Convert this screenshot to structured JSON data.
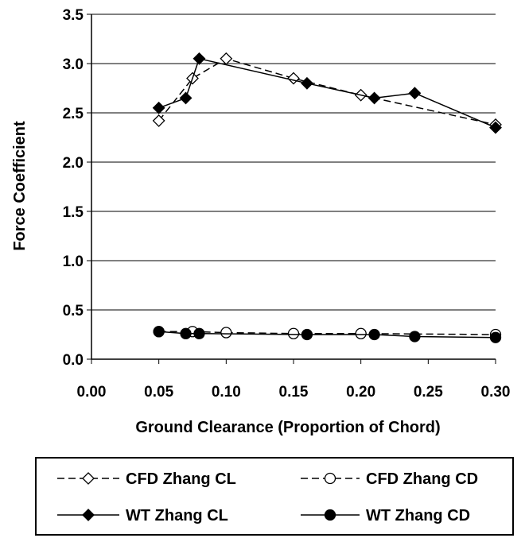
{
  "chart_data": {
    "type": "line",
    "title": "",
    "xlabel": "Ground Clearance (Proportion of Chord)",
    "ylabel": "Force Coefficient",
    "xlim": [
      0.0,
      0.3
    ],
    "ylim": [
      0.0,
      3.5
    ],
    "x_ticks": [
      "0.00",
      "0.05",
      "0.10",
      "0.15",
      "0.20",
      "0.25",
      "0.30"
    ],
    "y_ticks": [
      "0.0",
      "0.5",
      "1.0",
      "1.5",
      "2.0",
      "2.5",
      "3.0",
      "3.5"
    ],
    "grid": "horizontal",
    "legend_position": "bottom",
    "series": [
      {
        "name": "CFD Zhang CL",
        "line": "dashed",
        "marker": "open-diamond",
        "color": "#000000",
        "x": [
          0.05,
          0.075,
          0.1,
          0.15,
          0.2,
          0.3
        ],
        "y": [
          2.42,
          2.85,
          3.05,
          2.85,
          2.68,
          2.38
        ]
      },
      {
        "name": "CFD Zhang CD",
        "line": "dashed",
        "marker": "open-circle",
        "color": "#000000",
        "x": [
          0.05,
          0.075,
          0.1,
          0.15,
          0.2,
          0.3
        ],
        "y": [
          0.28,
          0.28,
          0.27,
          0.26,
          0.26,
          0.25
        ]
      },
      {
        "name": "WT Zhang CL",
        "line": "solid",
        "marker": "filled-diamond",
        "color": "#000000",
        "x": [
          0.05,
          0.07,
          0.08,
          0.16,
          0.21,
          0.24,
          0.3
        ],
        "y": [
          2.55,
          2.65,
          3.05,
          2.8,
          2.65,
          2.7,
          2.35
        ]
      },
      {
        "name": "WT Zhang CD",
        "line": "solid",
        "marker": "filled-circle",
        "color": "#000000",
        "x": [
          0.05,
          0.07,
          0.08,
          0.16,
          0.21,
          0.24,
          0.3
        ],
        "y": [
          0.28,
          0.26,
          0.26,
          0.25,
          0.25,
          0.23,
          0.22
        ]
      }
    ]
  }
}
